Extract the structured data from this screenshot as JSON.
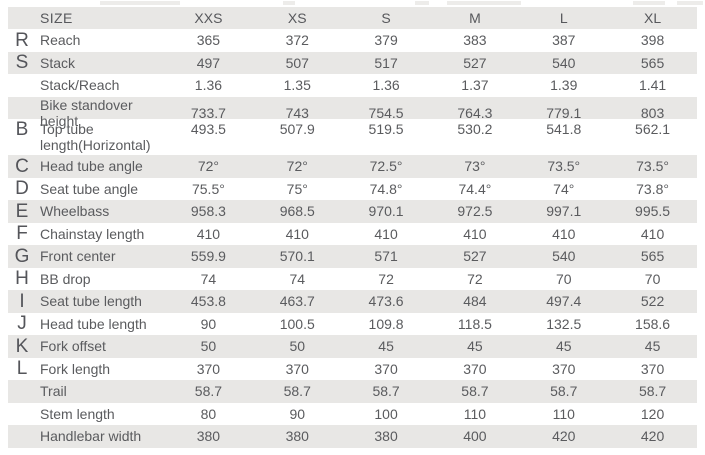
{
  "table": {
    "header": {
      "size_label": "SIZE",
      "columns": [
        "XXS",
        "XS",
        "S",
        "M",
        "L",
        "XL"
      ]
    },
    "rows": [
      {
        "letter": "R",
        "label": "Reach",
        "values": [
          "365",
          "372",
          "379",
          "383",
          "387",
          "398"
        ],
        "shade": false,
        "tall": false
      },
      {
        "letter": "S",
        "label": "Stack",
        "values": [
          "497",
          "507",
          "517",
          "527",
          "540",
          "565"
        ],
        "shade": true,
        "tall": false
      },
      {
        "letter": "",
        "label": "Stack/Reach",
        "values": [
          "1.36",
          "1.35",
          "1.36",
          "1.37",
          "1.39",
          "1.41"
        ],
        "shade": false,
        "tall": false
      },
      {
        "letter": "",
        "label": "Bike standover height",
        "values": [
          "733.7",
          "743",
          "754.5",
          "764.3",
          "779.1",
          "803"
        ],
        "shade": true,
        "tall": false
      },
      {
        "letter": "B",
        "label": "Top tube length(Horizontal)",
        "values": [
          "493.5",
          "507.9",
          "519.5",
          "530.2",
          "541.8",
          "562.1"
        ],
        "shade": false,
        "tall": true
      },
      {
        "letter": "C",
        "label": "Head tube angle",
        "values": [
          "72°",
          "72°",
          "72.5°",
          "73°",
          "73.5°",
          "73.5°"
        ],
        "shade": true,
        "tall": false
      },
      {
        "letter": "D",
        "label": "Seat tube angle",
        "values": [
          "75.5°",
          "75°",
          "74.8°",
          "74.4°",
          "74°",
          "73.8°"
        ],
        "shade": false,
        "tall": false
      },
      {
        "letter": "E",
        "label": "Wheelbass",
        "values": [
          "958.3",
          "968.5",
          "970.1",
          "972.5",
          "997.1",
          "995.5"
        ],
        "shade": true,
        "tall": false
      },
      {
        "letter": "F",
        "label": "Chainstay length",
        "values": [
          "410",
          "410",
          "410",
          "410",
          "410",
          "410"
        ],
        "shade": false,
        "tall": false
      },
      {
        "letter": "G",
        "label": "Front center",
        "values": [
          "559.9",
          "570.1",
          "571",
          "527",
          "540",
          "565"
        ],
        "shade": true,
        "tall": false
      },
      {
        "letter": "H",
        "label": "BB drop",
        "values": [
          "74",
          "74",
          "72",
          "72",
          "70",
          "70"
        ],
        "shade": false,
        "tall": false
      },
      {
        "letter": "I",
        "label": "Seat tube length",
        "values": [
          "453.8",
          "463.7",
          "473.6",
          "484",
          "497.4",
          "522"
        ],
        "shade": true,
        "tall": false
      },
      {
        "letter": "J",
        "label": "Head tube length",
        "values": [
          "90",
          "100.5",
          "109.8",
          "118.5",
          "132.5",
          "158.6"
        ],
        "shade": false,
        "tall": false
      },
      {
        "letter": "K",
        "label": "Fork offset",
        "values": [
          "50",
          "50",
          "45",
          "45",
          "45",
          "45"
        ],
        "shade": true,
        "tall": false
      },
      {
        "letter": "L",
        "label": "Fork length",
        "values": [
          "370",
          "370",
          "370",
          "370",
          "370",
          "370"
        ],
        "shade": false,
        "tall": false
      },
      {
        "letter": "",
        "label": "Trail",
        "values": [
          "58.7",
          "58.7",
          "58.7",
          "58.7",
          "58.7",
          "58.7"
        ],
        "shade": true,
        "tall": false
      },
      {
        "letter": "",
        "label": "Stem length",
        "values": [
          "80",
          "90",
          "100",
          "110",
          "110",
          "120"
        ],
        "shade": false,
        "tall": false
      },
      {
        "letter": "",
        "label": "Handlebar width",
        "values": [
          "380",
          "380",
          "380",
          "400",
          "420",
          "420"
        ],
        "shade": true,
        "tall": false
      }
    ]
  },
  "colors": {
    "stripe": "#e8e7e5",
    "text": "#5a5b5e",
    "letter": "#54555a"
  }
}
